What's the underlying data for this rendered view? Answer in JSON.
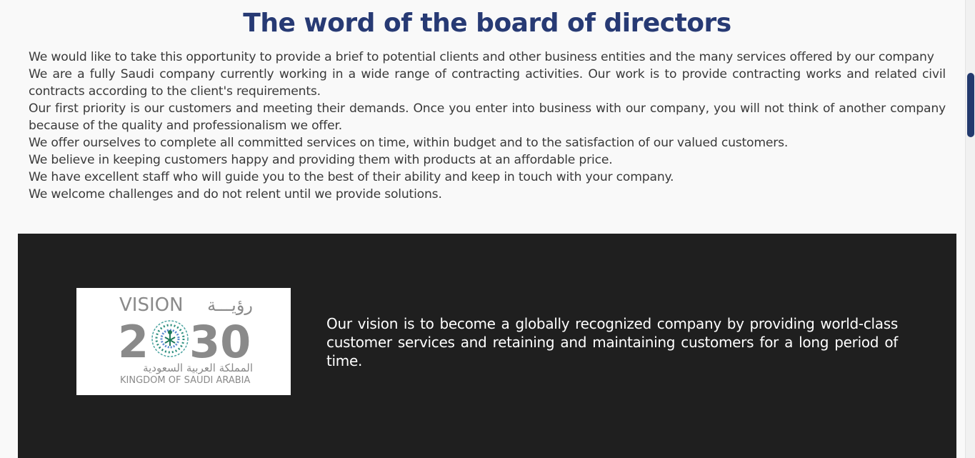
{
  "board": {
    "title": "The word of the board of directors",
    "paragraphs": [
      "We would like to take this opportunity to provide a brief to potential clients and other business entities and the many services offered by our company",
      "We are a fully Saudi company currently working in a wide range of contracting activities. Our work is to provide contracting works and related civil contracts according to the client's requirements.",
      "Our first priority is our customers and meeting their demands. Once you enter into business with our company, you will not think of another company because of the quality and professionalism we offer.",
      "We offer ourselves to complete all committed services on time, within budget and to the satisfaction of our valued customers.",
      "We believe in keeping customers happy and providing them with products at an affordable price.",
      "We have excellent staff who will guide you to the best of their ability and keep in touch with your company.",
      "We welcome challenges and do not relent until we provide solutions."
    ]
  },
  "vision": {
    "logo": {
      "vision_word": "VISION",
      "arabic_vision": "رؤيـــة",
      "year": "2030",
      "arabic_kingdom": "المملكة العربية السعودية",
      "kingdom": "KINGDOM OF SAUDI ARABIA"
    },
    "text": "Our vision is to become a globally recognized company by providing world-class customer services and retaining and maintaining customers for a long period of time."
  },
  "colors": {
    "title": "#273a74",
    "section_bg": "#1f1f1f",
    "scroll_thumb": "#233a6e"
  }
}
